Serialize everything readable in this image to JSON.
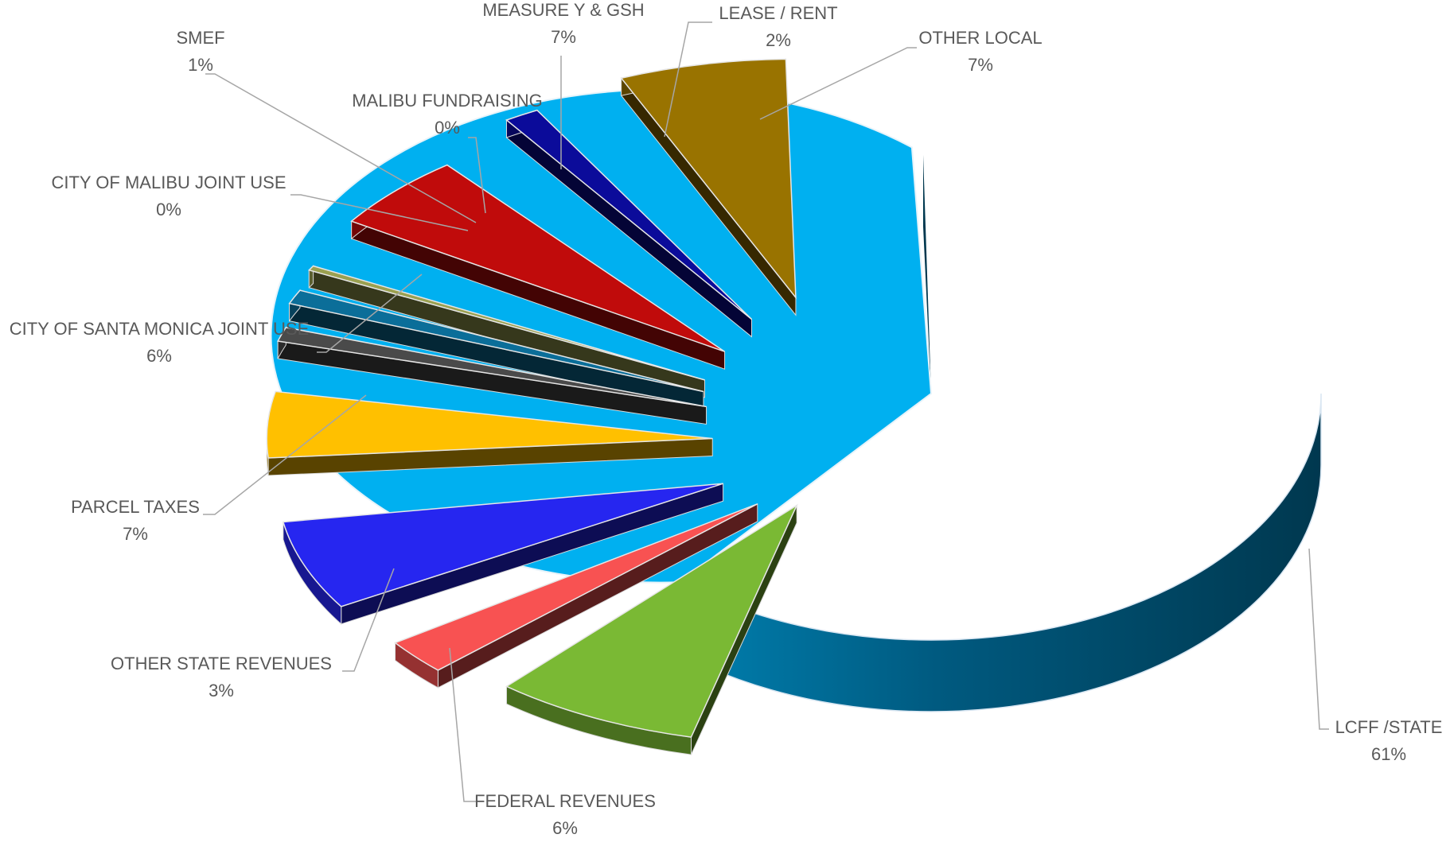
{
  "chart_data": {
    "type": "pie",
    "title": "",
    "categories": [
      "LCFF /STATE",
      "FEDERAL REVENUES",
      "OTHER STATE REVENUES",
      "PARCEL TAXES",
      "CITY OF SANTA MONICA JOINT USE",
      "CITY OF MALIBU JOINT USE",
      "SMEF",
      "MALIBU FUNDRAISING",
      "MEASURE Y & GSH",
      "LEASE / RENT",
      "OTHER LOCAL"
    ],
    "values": [
      61,
      6,
      3,
      7,
      6,
      0,
      1,
      0,
      7,
      2,
      7
    ],
    "value_labels": [
      "61%",
      "6%",
      "3%",
      "7%",
      "6%",
      "0%",
      "1%",
      "0%",
      "7%",
      "2%",
      "7%"
    ],
    "colors": [
      "#00b0f0",
      "#7ab934",
      "#f85252",
      "#2626f0",
      "#ffc000",
      "#4a4a4a",
      "#0b6e99",
      "#9aa050",
      "#c00b0b",
      "#0b0b9a",
      "#997300"
    ],
    "legend": "none",
    "style": "3d-exploded"
  }
}
